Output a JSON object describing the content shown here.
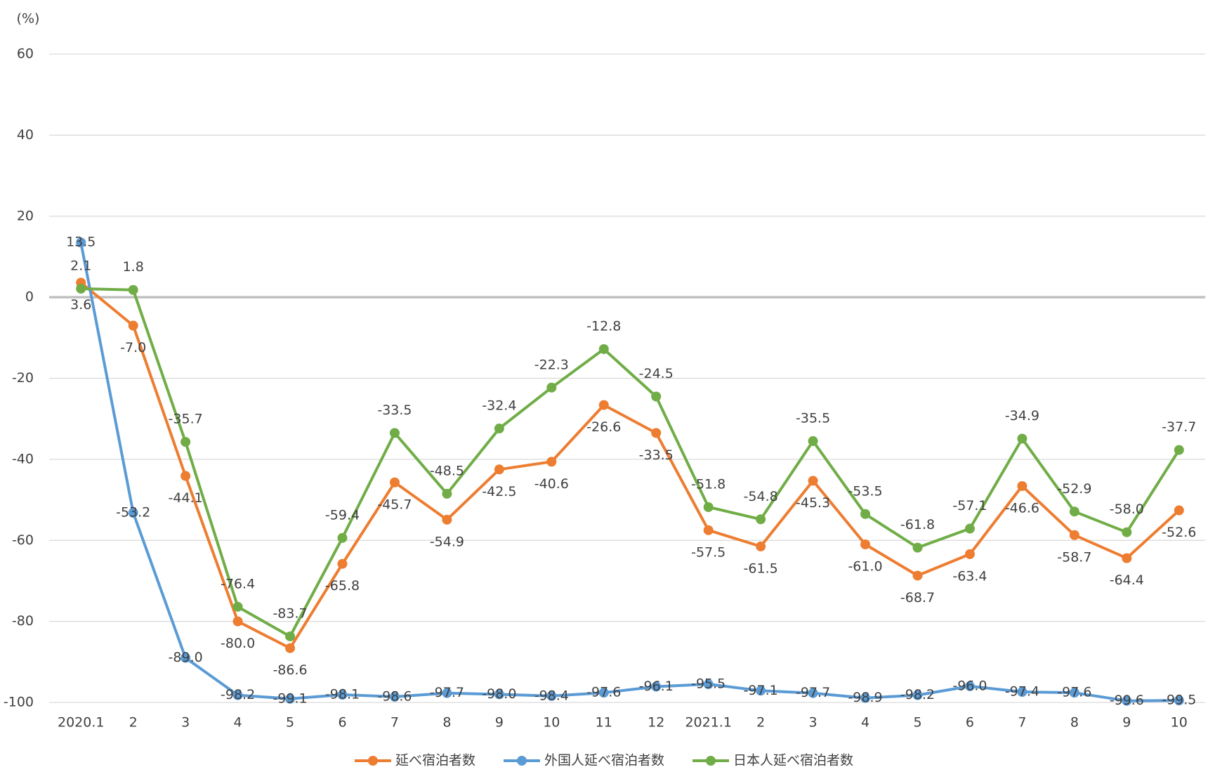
{
  "chart_data": {
    "type": "line",
    "y_label": "(%)",
    "categories": [
      "2020.1",
      "2",
      "3",
      "4",
      "5",
      "6",
      "7",
      "8",
      "9",
      "10",
      "11",
      "12",
      "2021.1",
      "2",
      "3",
      "4",
      "5",
      "6",
      "7",
      "8",
      "9",
      "10"
    ],
    "ylim": [
      -100,
      60
    ],
    "yticks": [
      -100,
      -80,
      -60,
      -40,
      -20,
      0,
      20,
      40,
      60
    ],
    "grid": true,
    "legend": "bottom",
    "series": [
      {
        "name": "延べ宿泊者数",
        "color": "#ed7d31",
        "values": [
          3.6,
          -7.0,
          -44.1,
          -80.0,
          -86.6,
          -65.8,
          -45.7,
          -54.9,
          -42.5,
          -40.6,
          -26.6,
          -33.5,
          -57.5,
          -61.5,
          -45.3,
          -61.0,
          -68.7,
          -63.4,
          -46.6,
          -58.7,
          -64.4,
          -52.6
        ],
        "value_labels": [
          "3.6",
          "-7.0",
          "-44.1",
          "-80.0",
          "-86.6",
          "-65.8",
          "-45.7",
          "-54.9",
          "-42.5",
          "-40.6",
          "-26.6",
          "-33.5",
          "-57.5",
          "-61.5",
          "-45.3",
          "-61.0",
          "-68.7",
          "-63.4",
          "-46.6",
          "-58.7",
          "-64.4",
          "-52.6"
        ]
      },
      {
        "name": "外国人延べ宿泊者数",
        "color": "#5b9bd5",
        "values": [
          13.5,
          -53.2,
          -89.0,
          -98.2,
          -99.1,
          -98.1,
          -98.6,
          -97.7,
          -98.0,
          -98.4,
          -97.6,
          -96.1,
          -95.5,
          -97.1,
          -97.7,
          -98.9,
          -98.2,
          -96.0,
          -97.4,
          -97.6,
          -99.6,
          -99.5
        ],
        "value_labels": [
          "13.5",
          "-53.2",
          "-89.0",
          "-98.2",
          "-99.1",
          "-98.1",
          "-98.6",
          "-97.7",
          "-98.0",
          "-98.4",
          "-97.6",
          "-96.1",
          "-95.5",
          "-97.1",
          "-97.7",
          "-98.9",
          "-98.2",
          "-96.0",
          "-97.4",
          "-97.6",
          "-99.6",
          "-99.5"
        ]
      },
      {
        "name": "日本人延べ宿泊者数",
        "color": "#70ad47",
        "values": [
          2.1,
          1.8,
          -35.7,
          -76.4,
          -83.7,
          -59.4,
          -33.5,
          -48.5,
          -32.4,
          -22.3,
          -12.8,
          -24.5,
          -51.8,
          -54.8,
          -35.5,
          -53.5,
          -61.8,
          -57.1,
          -34.9,
          -52.9,
          -58.0,
          -37.7
        ],
        "value_labels": [
          "2.1",
          "1.8",
          "-35.7",
          "-76.4",
          "-83.7",
          "-59.4",
          "-33.5",
          "-48.5",
          "-32.4",
          "-22.3",
          "-12.8",
          "-24.5",
          "-51.8",
          "-54.8",
          "-35.5",
          "-53.5",
          "-61.8",
          "-57.1",
          "-34.9",
          "-52.9",
          "-58.0",
          "-37.7"
        ]
      }
    ]
  }
}
